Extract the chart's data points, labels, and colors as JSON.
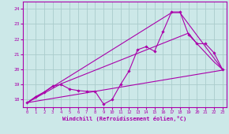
{
  "xlabel": "Windchill (Refroidissement éolien,°C)",
  "bg_color": "#cce8e8",
  "grid_color": "#aacccc",
  "line_color": "#aa00aa",
  "xlim": [
    -0.5,
    23.5
  ],
  "ylim": [
    17.5,
    24.5
  ],
  "yticks": [
    18,
    19,
    20,
    21,
    22,
    23,
    24
  ],
  "xticks": [
    0,
    1,
    2,
    3,
    4,
    5,
    6,
    7,
    8,
    9,
    10,
    11,
    12,
    13,
    14,
    15,
    16,
    17,
    18,
    19,
    20,
    21,
    22,
    23
  ],
  "line1_x": [
    0,
    1,
    2,
    3,
    4,
    5,
    6,
    7,
    8,
    9,
    10,
    11,
    12,
    13,
    14,
    15,
    16,
    17,
    18,
    19,
    20,
    21,
    22,
    23
  ],
  "line1_y": [
    17.8,
    18.2,
    18.5,
    18.9,
    19.0,
    18.7,
    18.6,
    18.55,
    18.55,
    17.7,
    18.0,
    19.0,
    19.9,
    21.3,
    21.5,
    21.2,
    22.5,
    23.8,
    23.8,
    22.3,
    21.7,
    21.7,
    21.1,
    20.0
  ],
  "line2_x": [
    0,
    23
  ],
  "line2_y": [
    17.8,
    19.95
  ],
  "line3_x": [
    0,
    4,
    19,
    20,
    21,
    22,
    23
  ],
  "line3_y": [
    17.8,
    19.05,
    22.4,
    21.7,
    21.1,
    20.5,
    20.0
  ],
  "line4_x": [
    0,
    17,
    18,
    23
  ],
  "line4_y": [
    17.8,
    23.75,
    23.75,
    20.0
  ]
}
